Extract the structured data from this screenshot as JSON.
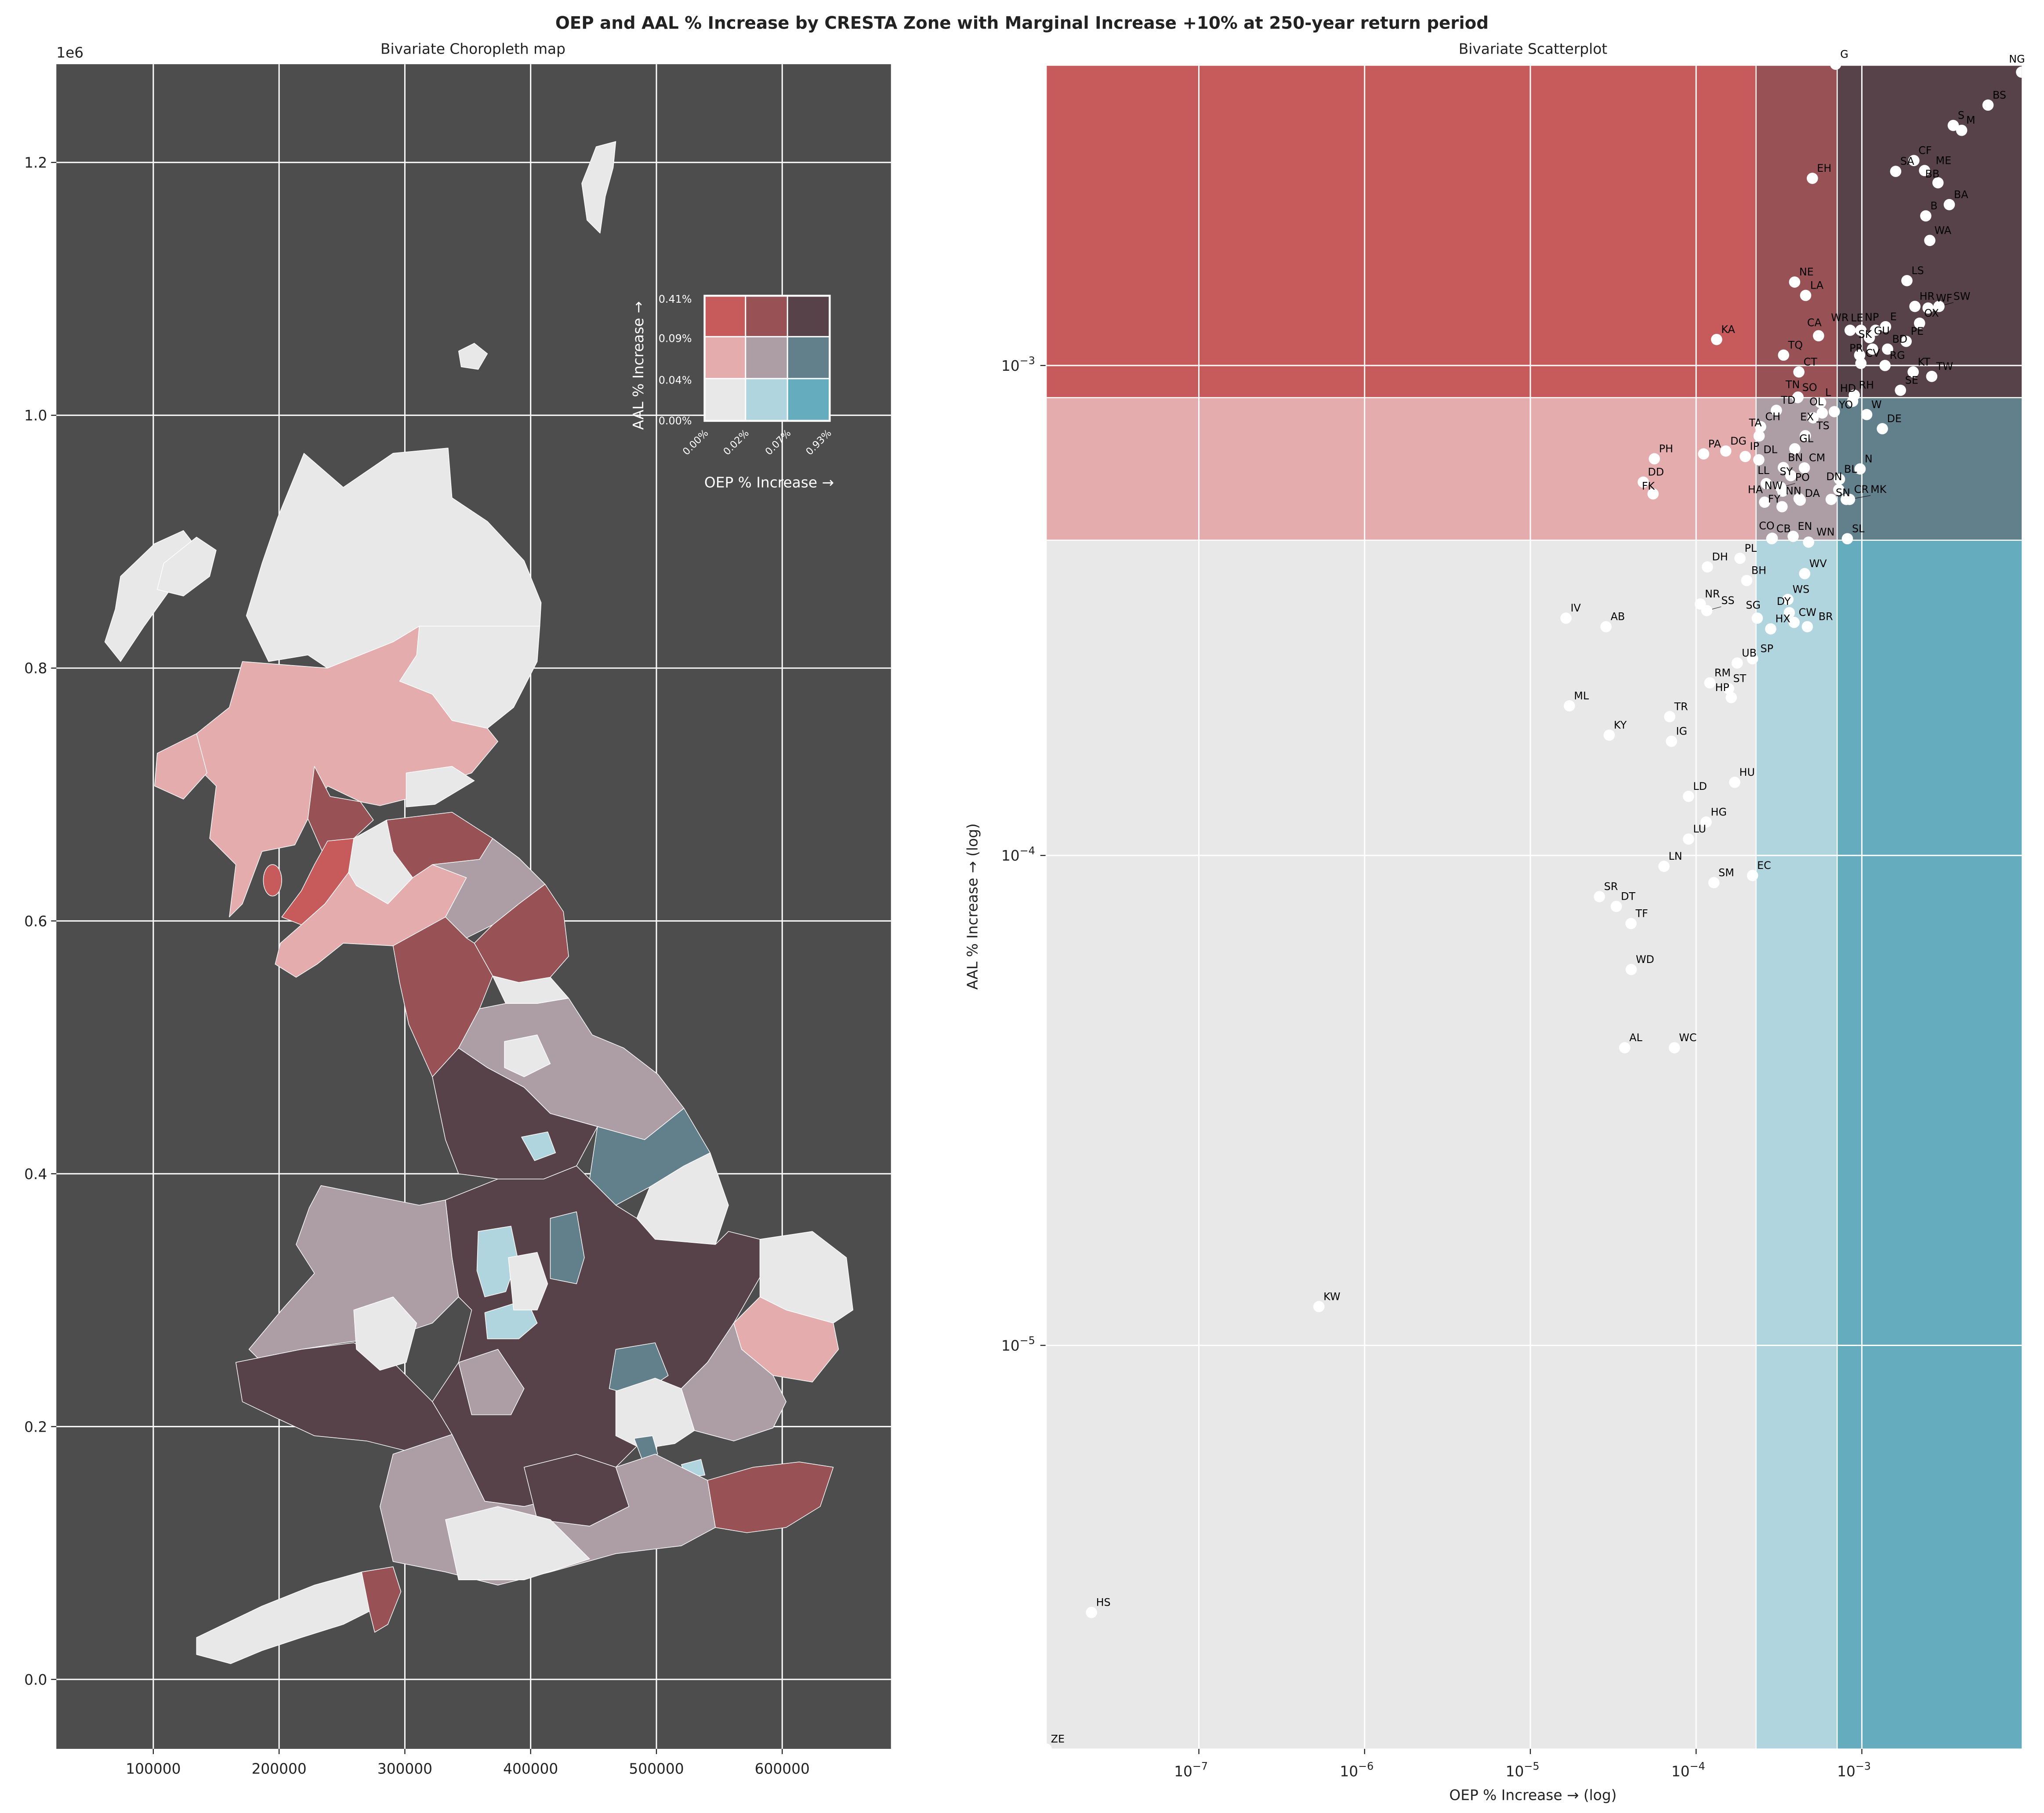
{
  "title": "OEP and AAL % Increase by CRESTA Zone with Marginal Increase +10% at 250-year return period",
  "palette": {
    "low_low": "#e8e8e8",
    "low_mid_oep": "#b0d5df",
    "low_high_oep": "#64acbe",
    "mid_low_oep": "#e4acac",
    "mid_mid": "#ad9ea5",
    "mid_high_oep": "#627f8c",
    "high_low_oep": "#c75a5a",
    "high_mid_oep": "#985256",
    "high_high": "#574249",
    "map_background": "#4d4d4d"
  },
  "chart_data": [
    {
      "type": "choropleth",
      "title": "Bivariate Choropleth map",
      "x_offset_label": "",
      "y_offset_label": "1e6",
      "xticks": [
        100000,
        200000,
        300000,
        400000,
        500000,
        600000
      ],
      "xtick_labels": [
        "100000",
        "200000",
        "300000",
        "400000",
        "500000",
        "600000"
      ],
      "yticks": [
        0.0,
        0.2,
        0.4,
        0.6,
        0.8,
        1.0,
        1.2
      ],
      "ytick_labels": [
        "0.0",
        "0.2",
        "0.4",
        "0.6",
        "0.8",
        "1.0",
        "1.2"
      ],
      "grid": true,
      "legend": {
        "placement": "top-right",
        "xlabel": "OEP % Increase →",
        "ylabel": "AAL % Increase →",
        "x_breaks": [
          "0.00%",
          "0.02%",
          "0.07%",
          "0.93%"
        ],
        "y_breaks": [
          "0.00%",
          "0.04%",
          "0.09%",
          "0.41%"
        ]
      }
    },
    {
      "type": "scatter",
      "title": "Bivariate Scatterplot",
      "xlabel": "OEP % Increase → (log)",
      "ylabel": "AAL % Increase → (log)",
      "xscale": "log",
      "yscale": "log",
      "xlim": [
        1.2e-08,
        0.0093
      ],
      "ylim": [
        1.5e-06,
        0.0041
      ],
      "xticks": [
        1e-07,
        1e-06,
        1e-05,
        0.0001,
        0.001
      ],
      "xtick_exponents": [
        "−7",
        "−6",
        "−5",
        "−4",
        "−3"
      ],
      "yticks": [
        1e-05,
        0.0001,
        0.001
      ],
      "ytick_exponents": [
        "−5",
        "−4",
        "−3"
      ],
      "tick_base": "10",
      "oep_breaks": [
        0.00023,
        0.00071
      ],
      "aal_breaks": [
        0.00044,
        0.00086
      ],
      "points": [
        {
          "label": "G",
          "oep": 0.000695,
          "aal": 0.00412
        },
        {
          "label": "NG",
          "oep": 0.0092,
          "aal": 0.00397
        },
        {
          "label": "BS",
          "oep": 0.00577,
          "aal": 0.0034
        },
        {
          "label": "S",
          "oep": 0.00356,
          "aal": 0.00309
        },
        {
          "label": "M",
          "oep": 0.004,
          "aal": 0.00302
        },
        {
          "label": "CF",
          "oep": 0.00206,
          "aal": 0.00262
        },
        {
          "label": "SA",
          "oep": 0.0016,
          "aal": 0.00249
        },
        {
          "label": "ME",
          "oep": 0.00239,
          "aal": 0.0025
        },
        {
          "label": "BB",
          "oep": 0.00288,
          "aal": 0.00236
        },
        {
          "label": "BA",
          "oep": 0.00337,
          "aal": 0.00213
        },
        {
          "label": "B",
          "oep": 0.00243,
          "aal": 0.00202
        },
        {
          "label": "WA",
          "oep": 0.00257,
          "aal": 0.0018
        },
        {
          "label": "EH",
          "oep": 0.000503,
          "aal": 0.00241
        },
        {
          "label": "LS",
          "oep": 0.00187,
          "aal": 0.00149
        },
        {
          "label": "NE",
          "oep": 0.000393,
          "aal": 0.00148
        },
        {
          "label": "LA",
          "oep": 0.000458,
          "aal": 0.00139
        },
        {
          "label": "HR",
          "oep": 0.00209,
          "aal": 0.00132
        },
        {
          "label": "WF",
          "oep": 0.00251,
          "aal": 0.00131
        },
        {
          "label": "SW",
          "oep": 0.00292,
          "aal": 0.00132
        },
        {
          "label": "OX",
          "oep": 0.00223,
          "aal": 0.00122
        },
        {
          "label": "E",
          "oep": 0.00139,
          "aal": 0.0012
        },
        {
          "label": "NP",
          "oep": 0.00121,
          "aal": 0.00118
        },
        {
          "label": "LE",
          "oep": 0.000987,
          "aal": 0.00118
        },
        {
          "label": "WR",
          "oep": 0.00085,
          "aal": 0.00118
        },
        {
          "label": "GU",
          "oep": 0.00111,
          "aal": 0.00114
        },
        {
          "label": "PE",
          "oep": 0.00185,
          "aal": 0.00112
        },
        {
          "label": "SK",
          "oep": 0.00116,
          "aal": 0.00108
        },
        {
          "label": "BD",
          "oep": 0.00143,
          "aal": 0.00108
        },
        {
          "label": "PR",
          "oep": 0.00097,
          "aal": 0.00105
        },
        {
          "label": "CV",
          "oep": 0.000987,
          "aal": 0.00101
        },
        {
          "label": "RG",
          "oep": 0.00138,
          "aal": 0.001
        },
        {
          "label": "CA",
          "oep": 0.000548,
          "aal": 0.00115
        },
        {
          "label": "KA",
          "oep": 0.000133,
          "aal": 0.00113
        },
        {
          "label": "TQ",
          "oep": 0.000337,
          "aal": 0.00105
        },
        {
          "label": "CT",
          "oep": 0.000417,
          "aal": 0.00097
        },
        {
          "label": "KT",
          "oep": 0.00204,
          "aal": 0.00097
        },
        {
          "label": "TW",
          "oep": 0.00264,
          "aal": 0.00095
        },
        {
          "label": "SE",
          "oep": 0.00171,
          "aal": 0.00089
        },
        {
          "label": "SO",
          "oep": 0.00041,
          "aal": 0.00086
        },
        {
          "label": "TN",
          "oep": 0.000412,
          "aal": 0.000862
        },
        {
          "label": "RH",
          "oep": 0.0009,
          "aal": 0.00087
        },
        {
          "label": "HD",
          "oep": 0.00088,
          "aal": 0.000845
        },
        {
          "label": "TD",
          "oep": 0.000305,
          "aal": 0.00081
        },
        {
          "label": "L",
          "oep": 0.000564,
          "aal": 0.00084
        },
        {
          "label": "OL",
          "oep": 0.000577,
          "aal": 0.0008
        },
        {
          "label": "YO",
          "oep": 0.000682,
          "aal": 0.000805
        },
        {
          "label": "EX",
          "oep": 0.000508,
          "aal": 0.000782
        },
        {
          "label": "W",
          "oep": 0.00107,
          "aal": 0.000794
        },
        {
          "label": "DE",
          "oep": 0.00133,
          "aal": 0.000743
        },
        {
          "label": "CH",
          "oep": 0.000245,
          "aal": 0.00075
        },
        {
          "label": "TA",
          "oep": 0.00024,
          "aal": 0.000718
        },
        {
          "label": "TS",
          "oep": 0.000456,
          "aal": 0.000719
        },
        {
          "label": "GL",
          "oep": 0.000394,
          "aal": 0.000676
        },
        {
          "label": "PA",
          "oep": 0.000111,
          "aal": 0.00066
        },
        {
          "label": "DG",
          "oep": 0.000151,
          "aal": 0.000669
        },
        {
          "label": "IP",
          "oep": 0.000198,
          "aal": 0.000652
        },
        {
          "label": "DL",
          "oep": 0.000239,
          "aal": 0.000642
        },
        {
          "label": "PH",
          "oep": 5.6e-05,
          "aal": 0.000645
        },
        {
          "label": "DD",
          "oep": 4.8e-05,
          "aal": 0.000578
        },
        {
          "label": "FK",
          "oep": 5.5e-05,
          "aal": 0.000547
        },
        {
          "label": "BN",
          "oep": 0.000336,
          "aal": 0.000619
        },
        {
          "label": "CM",
          "oep": 0.00045,
          "aal": 0.000618
        },
        {
          "label": "SY",
          "oep": 0.000373,
          "aal": 0.000596
        },
        {
          "label": "LL",
          "oep": 0.000265,
          "aal": 0.000574
        },
        {
          "label": "PO",
          "oep": 0.000324,
          "aal": 0.000564
        },
        {
          "label": "NW",
          "oep": 0.000333,
          "aal": 0.000554
        },
        {
          "label": "NN",
          "oep": 0.000418,
          "aal": 0.000535
        },
        {
          "label": "DA",
          "oep": 0.000425,
          "aal": 0.000531
        },
        {
          "label": "HA",
          "oep": 0.000259,
          "aal": 0.000526
        },
        {
          "label": "FY",
          "oep": 0.00033,
          "aal": 0.000515
        },
        {
          "label": "N",
          "oep": 0.000976,
          "aal": 0.000615
        },
        {
          "label": "BL",
          "oep": 0.000733,
          "aal": 0.000586
        },
        {
          "label": "DN",
          "oep": 0.000726,
          "aal": 0.000558
        },
        {
          "label": "SN",
          "oep": 0.000653,
          "aal": 0.000533
        },
        {
          "label": "CR",
          "oep": 0.000805,
          "aal": 0.000533
        },
        {
          "label": "MK",
          "oep": 0.000843,
          "aal": 0.000533
        },
        {
          "label": "CB",
          "oep": 0.000286,
          "aal": 0.000443
        },
        {
          "label": "CO",
          "oep": 0.000288,
          "aal": 0.000444
        },
        {
          "label": "EN",
          "oep": 0.000385,
          "aal": 0.000448
        },
        {
          "label": "WN",
          "oep": 0.000477,
          "aal": 0.000436
        },
        {
          "label": "SL",
          "oep": 0.000818,
          "aal": 0.000443
        },
        {
          "label": "PL",
          "oep": 0.000184,
          "aal": 0.000404
        },
        {
          "label": "DH",
          "oep": 0.000117,
          "aal": 0.000388
        },
        {
          "label": "BH",
          "oep": 0.000202,
          "aal": 0.000364
        },
        {
          "label": "WV",
          "oep": 0.000452,
          "aal": 0.000376
        },
        {
          "label": "WS",
          "oep": 0.000358,
          "aal": 0.000333
        },
        {
          "label": "DY",
          "oep": 0.000365,
          "aal": 0.000313
        },
        {
          "label": "CW",
          "oep": 0.00039,
          "aal": 0.000299
        },
        {
          "label": "BR",
          "oep": 0.000469,
          "aal": 0.000293
        },
        {
          "label": "HX",
          "oep": 0.000282,
          "aal": 0.00029
        },
        {
          "label": "SG",
          "oep": 0.000234,
          "aal": 0.000305
        },
        {
          "label": "NR",
          "oep": 0.000106,
          "aal": 0.000326
        },
        {
          "label": "SS",
          "oep": 0.000116,
          "aal": 0.000316
        },
        {
          "label": "IV",
          "oep": 1.64e-05,
          "aal": 0.000305
        },
        {
          "label": "AB",
          "oep": 2.86e-05,
          "aal": 0.000293
        },
        {
          "label": "UB",
          "oep": 0.000177,
          "aal": 0.000247
        },
        {
          "label": "SP",
          "oep": 0.000219,
          "aal": 0.000252
        },
        {
          "label": "RM",
          "oep": 0.000121,
          "aal": 0.000225
        },
        {
          "label": "ST",
          "oep": 0.000157,
          "aal": 0.000219
        },
        {
          "label": "HP",
          "oep": 0.000163,
          "aal": 0.00021
        },
        {
          "label": "ML",
          "oep": 1.72e-05,
          "aal": 0.000202
        },
        {
          "label": "TR",
          "oep": 6.93e-05,
          "aal": 0.000192
        },
        {
          "label": "KY",
          "oep": 2.99e-05,
          "aal": 0.000176
        },
        {
          "label": "IG",
          "oep": 7.1e-05,
          "aal": 0.000171
        },
        {
          "label": "HU",
          "oep": 0.000171,
          "aal": 0.000141
        },
        {
          "label": "LD",
          "oep": 9e-05,
          "aal": 0.000132
        },
        {
          "label": "HG",
          "oep": 0.000115,
          "aal": 0.000117
        },
        {
          "label": "LU",
          "oep": 9e-05,
          "aal": 0.000108
        },
        {
          "label": "LN",
          "oep": 6.4e-05,
          "aal": 9.5e-05
        },
        {
          "label": "SM",
          "oep": 0.000128,
          "aal": 8.8e-05
        },
        {
          "label": "EC",
          "oep": 0.000219,
          "aal": 9.1e-05
        },
        {
          "label": "SR",
          "oep": 2.61e-05,
          "aal": 8.24e-05
        },
        {
          "label": "DT",
          "oep": 3.3e-05,
          "aal": 7.87e-05
        },
        {
          "label": "TF",
          "oep": 4.05e-05,
          "aal": 7.26e-05
        },
        {
          "label": "WD",
          "oep": 4.06e-05,
          "aal": 5.85e-05
        },
        {
          "label": "AL",
          "oep": 3.71e-05,
          "aal": 4.05e-05
        },
        {
          "label": "WC",
          "oep": 7.4e-05,
          "aal": 4.05e-05
        },
        {
          "label": "KW",
          "oep": 5.3e-07,
          "aal": 1.2e-05
        },
        {
          "label": "HS",
          "oep": 2.25e-08,
          "aal": 2.85e-06
        },
        {
          "label": "ZE",
          "oep": 1.2e-08,
          "aal": 1.5e-06
        }
      ]
    }
  ]
}
